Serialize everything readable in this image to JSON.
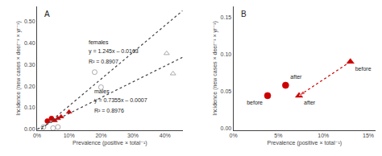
{
  "chart_data": [
    {
      "type": "scatter",
      "title": "A",
      "series": [
        {
          "type": "scatter",
          "marker": "circle-open",
          "color": "#aaaaaa",
          "x": [
            0.18,
            0.2
          ],
          "y": [
            0.265,
            0.195
          ]
        },
        {
          "type": "scatter",
          "marker": "triangle-open",
          "color": "#aaaaaa",
          "x": [
            0.405,
            0.425
          ],
          "y": [
            0.352,
            0.258
          ]
        },
        {
          "type": "scatter",
          "marker": "circle-open",
          "color": "#aaaaaa",
          "x": [
            0.02,
            0.05,
            0.065
          ],
          "y": [
            0.01,
            0.005,
            0.01
          ]
        },
        {
          "type": "scatter",
          "marker": "circle",
          "color": "#CC0000",
          "x": [
            0.032,
            0.045
          ],
          "y": [
            0.038,
            0.05
          ]
        },
        {
          "type": "scatter",
          "marker": "triangle",
          "color": "#CC0000",
          "x": [
            0.055,
            0.065,
            0.075,
            0.1
          ],
          "y": [
            0.04,
            0.05,
            0.058,
            0.08
          ]
        },
        {
          "type": "line",
          "line_style": "dotted",
          "color": "#444444",
          "x": [
            0.013,
            0.455
          ],
          "y": [
            -0.000115,
            0.550175
          ]
        },
        {
          "type": "line",
          "line_style": "dotted",
          "color": "#444444",
          "x": [
            0.001,
            0.455
          ],
          "y": [
            3.55e-05,
            0.3339525
          ]
        }
      ],
      "annotations": [
        {
          "text": "females",
          "x": 0.155,
          "y": 0.385
        },
        {
          "text": "y = 1.245x – 0.0163",
          "x": 0.155,
          "y": 0.339
        },
        {
          "text": "R² = 0.8907",
          "x": 0.155,
          "y": 0.295
        },
        {
          "text": "males",
          "x": 0.175,
          "y": 0.155
        },
        {
          "text": "y = 0.7355x – 0.0007",
          "x": 0.175,
          "y": 0.109
        },
        {
          "text": "R² = 0.8976",
          "x": 0.175,
          "y": 0.065
        }
      ],
      "xlabel": "Prevalence (positive × total⁻¹)",
      "ylabel": "Incidence (new cases × deer⁻¹ × yr⁻¹)",
      "xlim": [
        0,
        0.455
      ],
      "ylim": [
        -0.005,
        0.57
      ],
      "xticks": [
        {
          "value": 0,
          "label": "0%"
        },
        {
          "value": 0.1,
          "label": "10%"
        },
        {
          "value": 0.2,
          "label": "20%"
        },
        {
          "value": 0.3,
          "label": "30%"
        },
        {
          "value": 0.4,
          "label": "40%"
        }
      ],
      "yticks": [
        {
          "value": 0,
          "label": "0.00"
        },
        {
          "value": 0.1,
          "label": "0.10"
        },
        {
          "value": 0.2,
          "label": "0.20"
        },
        {
          "value": 0.3,
          "label": "0.30"
        },
        {
          "value": 0.4,
          "label": "0.40"
        },
        {
          "value": 0.5,
          "label": "0.50"
        }
      ],
      "grid": false
    },
    {
      "type": "scatter",
      "title": "B",
      "series": [
        {
          "type": "scatter",
          "marker": "circle",
          "color": "#CC0000",
          "x": [
            0.038,
            0.058
          ],
          "y": [
            0.044,
            0.058
          ],
          "text": [
            "before",
            "after"
          ]
        },
        {
          "type": "scatter",
          "marker": "triangle",
          "color": "#CC0000",
          "x": [
            0.073,
            0.13
          ],
          "y": [
            0.044,
            0.09
          ],
          "text": [
            "after",
            "before"
          ]
        },
        {
          "type": "line",
          "line_style": "dotted",
          "marker": "arrow",
          "color": "#CC0000",
          "x": [
            0.13,
            0.073
          ],
          "y": [
            0.09,
            0.044
          ]
        }
      ],
      "xlabel": "Prevalence (positive × total⁻¹)",
      "ylabel": "Incidence (new cases × deer⁻¹ × yr⁻¹)",
      "xlim": [
        0,
        0.158
      ],
      "ylim": [
        -0.003,
        0.165
      ],
      "xticks": [
        {
          "value": 0,
          "label": "0%"
        },
        {
          "value": 0.05,
          "label": "5%"
        },
        {
          "value": 0.1,
          "label": "10%"
        },
        {
          "value": 0.15,
          "label": "15%"
        }
      ],
      "yticks": [
        {
          "value": 0,
          "label": "0.00"
        },
        {
          "value": 0.05,
          "label": "0.05"
        },
        {
          "value": 0.1,
          "label": "0.10"
        },
        {
          "value": 0.15,
          "label": "0.15"
        }
      ],
      "grid": false
    }
  ]
}
